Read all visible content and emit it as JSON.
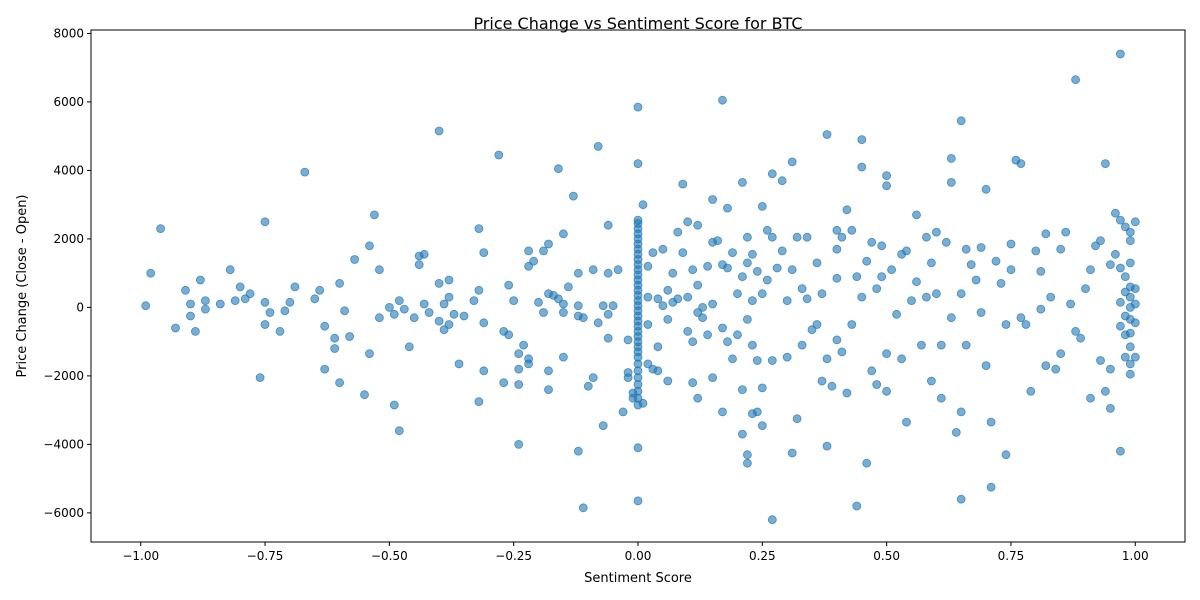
{
  "chart_data": {
    "type": "scatter",
    "title": "Price Change vs Sentiment Score for BTC",
    "xlabel": "Sentiment Score",
    "ylabel": "Price Change (Close - Open)",
    "xlim": [
      -1.1,
      1.1
    ],
    "ylim": [
      -6850,
      8100
    ],
    "xticks": [
      -1.0,
      -0.75,
      -0.5,
      -0.25,
      0.0,
      0.25,
      0.5,
      0.75,
      1.0
    ],
    "xtick_labels": [
      "−1.00",
      "−0.75",
      "−0.50",
      "−0.25",
      "0.00",
      "0.25",
      "0.50",
      "0.75",
      "1.00"
    ],
    "yticks": [
      -6000,
      -4000,
      -2000,
      0,
      2000,
      4000,
      6000,
      8000
    ],
    "ytick_labels": [
      "−6000",
      "−4000",
      "−2000",
      "0",
      "2000",
      "4000",
      "6000",
      "8000"
    ],
    "grid": false,
    "marker_color": "#1f77b4",
    "marker_alpha": 0.6,
    "points": [
      [
        -0.99,
        50
      ],
      [
        -0.98,
        1000
      ],
      [
        -0.96,
        2300
      ],
      [
        -0.93,
        -600
      ],
      [
        -0.91,
        500
      ],
      [
        -0.9,
        100
      ],
      [
        -0.9,
        -250
      ],
      [
        -0.89,
        -700
      ],
      [
        -0.88,
        800
      ],
      [
        -0.87,
        200
      ],
      [
        -0.87,
        -50
      ],
      [
        -0.84,
        100
      ],
      [
        -0.82,
        1100
      ],
      [
        -0.81,
        200
      ],
      [
        -0.8,
        600
      ],
      [
        -0.79,
        250
      ],
      [
        -0.78,
        400
      ],
      [
        -0.76,
        -2050
      ],
      [
        -0.75,
        2500
      ],
      [
        -0.75,
        150
      ],
      [
        -0.75,
        -500
      ],
      [
        -0.74,
        -150
      ],
      [
        -0.72,
        -700
      ],
      [
        -0.71,
        -100
      ],
      [
        -0.7,
        150
      ],
      [
        -0.69,
        600
      ],
      [
        -0.67,
        3950
      ],
      [
        -0.65,
        250
      ],
      [
        -0.64,
        500
      ],
      [
        -0.63,
        -550
      ],
      [
        -0.63,
        -1800
      ],
      [
        -0.61,
        -1200
      ],
      [
        -0.61,
        -900
      ],
      [
        -0.6,
        700
      ],
      [
        -0.6,
        -2200
      ],
      [
        -0.59,
        -100
      ],
      [
        -0.58,
        -850
      ],
      [
        -0.57,
        1400
      ],
      [
        -0.55,
        -2550
      ],
      [
        -0.54,
        1800
      ],
      [
        -0.54,
        -1350
      ],
      [
        -0.53,
        2700
      ],
      [
        -0.52,
        1100
      ],
      [
        -0.52,
        -300
      ],
      [
        -0.5,
        0
      ],
      [
        -0.49,
        -200
      ],
      [
        -0.49,
        -2850
      ],
      [
        -0.48,
        200
      ],
      [
        -0.48,
        -3600
      ],
      [
        -0.47,
        -50
      ],
      [
        -0.46,
        -1150
      ],
      [
        -0.45,
        -300
      ],
      [
        -0.44,
        1250
      ],
      [
        -0.44,
        1500
      ],
      [
        -0.43,
        1550
      ],
      [
        -0.43,
        100
      ],
      [
        -0.42,
        -150
      ],
      [
        -0.4,
        5150
      ],
      [
        -0.4,
        700
      ],
      [
        -0.4,
        -400
      ],
      [
        -0.39,
        100
      ],
      [
        -0.39,
        -650
      ],
      [
        -0.38,
        800
      ],
      [
        -0.38,
        300
      ],
      [
        -0.38,
        -500
      ],
      [
        -0.37,
        -200
      ],
      [
        -0.36,
        -1650
      ],
      [
        -0.35,
        -250
      ],
      [
        -0.33,
        200
      ],
      [
        -0.32,
        500
      ],
      [
        -0.32,
        2300
      ],
      [
        -0.32,
        -2750
      ],
      [
        -0.31,
        1600
      ],
      [
        -0.31,
        -1850
      ],
      [
        -0.31,
        -450
      ],
      [
        -0.28,
        4450
      ],
      [
        -0.27,
        -2200
      ],
      [
        -0.27,
        -700
      ],
      [
        -0.26,
        650
      ],
      [
        -0.26,
        -800
      ],
      [
        -0.25,
        200
      ],
      [
        -0.24,
        -1350
      ],
      [
        -0.24,
        -1800
      ],
      [
        -0.24,
        -2250
      ],
      [
        -0.24,
        -4000
      ],
      [
        -0.23,
        -1100
      ],
      [
        -0.22,
        1650
      ],
      [
        -0.22,
        1200
      ],
      [
        -0.22,
        -1500
      ],
      [
        -0.22,
        -1650
      ],
      [
        -0.21,
        1350
      ],
      [
        -0.2,
        150
      ],
      [
        -0.19,
        -150
      ],
      [
        -0.19,
        1650
      ],
      [
        -0.18,
        1850
      ],
      [
        -0.18,
        400
      ],
      [
        -0.18,
        -1850
      ],
      [
        -0.18,
        -2400
      ],
      [
        -0.17,
        350
      ],
      [
        -0.16,
        4050
      ],
      [
        -0.16,
        250
      ],
      [
        -0.15,
        2150
      ],
      [
        -0.15,
        100
      ],
      [
        -0.15,
        -150
      ],
      [
        -0.15,
        -1450
      ],
      [
        -0.14,
        600
      ],
      [
        -0.13,
        3250
      ],
      [
        -0.12,
        1000
      ],
      [
        -0.12,
        50
      ],
      [
        -0.12,
        -250
      ],
      [
        -0.12,
        -4200
      ],
      [
        -0.11,
        -5850
      ],
      [
        -0.11,
        -300
      ],
      [
        -0.1,
        -2300
      ],
      [
        -0.09,
        1100
      ],
      [
        -0.09,
        -2050
      ],
      [
        -0.08,
        -450
      ],
      [
        -0.08,
        4700
      ],
      [
        -0.07,
        50
      ],
      [
        -0.07,
        -3450
      ],
      [
        -0.06,
        2400
      ],
      [
        -0.06,
        1000
      ],
      [
        -0.06,
        -200
      ],
      [
        -0.06,
        -900
      ],
      [
        -0.05,
        50
      ],
      [
        -0.04,
        1100
      ],
      [
        -0.03,
        -3050
      ],
      [
        -0.02,
        -2050
      ],
      [
        -0.02,
        -1900
      ],
      [
        -0.02,
        -950
      ],
      [
        -0.01,
        -2650
      ],
      [
        -0.01,
        -2500
      ],
      [
        0.0,
        5850
      ],
      [
        0.0,
        4200
      ],
      [
        0.0,
        2550
      ],
      [
        0.0,
        2450
      ],
      [
        0.0,
        2300
      ],
      [
        0.0,
        2150
      ],
      [
        0.0,
        2000
      ],
      [
        0.0,
        1850
      ],
      [
        0.0,
        1700
      ],
      [
        0.0,
        1550
      ],
      [
        0.0,
        1400
      ],
      [
        0.0,
        1250
      ],
      [
        0.0,
        1100
      ],
      [
        0.0,
        950
      ],
      [
        0.0,
        800
      ],
      [
        0.0,
        650
      ],
      [
        0.0,
        500
      ],
      [
        0.0,
        350
      ],
      [
        0.0,
        200
      ],
      [
        0.0,
        50
      ],
      [
        0.0,
        -100
      ],
      [
        0.0,
        -250
      ],
      [
        0.0,
        -400
      ],
      [
        0.0,
        -550
      ],
      [
        0.0,
        -700
      ],
      [
        0.0,
        -850
      ],
      [
        0.0,
        -1000
      ],
      [
        0.0,
        -1150
      ],
      [
        0.0,
        -1300
      ],
      [
        0.0,
        -1450
      ],
      [
        0.0,
        -1650
      ],
      [
        0.0,
        -1850
      ],
      [
        0.0,
        -2050
      ],
      [
        0.0,
        -2250
      ],
      [
        0.0,
        -2450
      ],
      [
        0.0,
        -2650
      ],
      [
        0.0,
        -2850
      ],
      [
        0.0,
        -4100
      ],
      [
        0.0,
        -5650
      ],
      [
        0.01,
        3000
      ],
      [
        0.01,
        -2800
      ],
      [
        0.02,
        -1650
      ],
      [
        0.02,
        1200
      ],
      [
        0.02,
        300
      ],
      [
        0.02,
        -500
      ],
      [
        0.03,
        1600
      ],
      [
        0.03,
        -1800
      ],
      [
        0.04,
        250
      ],
      [
        0.04,
        -1850
      ],
      [
        0.04,
        -1150
      ],
      [
        0.05,
        1700
      ],
      [
        0.05,
        50
      ],
      [
        0.06,
        500
      ],
      [
        0.06,
        -350
      ],
      [
        0.06,
        -2150
      ],
      [
        0.07,
        1000
      ],
      [
        0.07,
        150
      ],
      [
        0.08,
        2200
      ],
      [
        0.08,
        250
      ],
      [
        0.09,
        3600
      ],
      [
        0.09,
        1600
      ],
      [
        0.1,
        2500
      ],
      [
        0.1,
        300
      ],
      [
        0.1,
        -700
      ],
      [
        0.11,
        -1000
      ],
      [
        0.11,
        1100
      ],
      [
        0.11,
        -2200
      ],
      [
        0.12,
        2400
      ],
      [
        0.12,
        -2650
      ],
      [
        0.12,
        650
      ],
      [
        0.12,
        -150
      ],
      [
        0.13,
        0
      ],
      [
        0.13,
        -300
      ],
      [
        0.14,
        1200
      ],
      [
        0.14,
        -800
      ],
      [
        0.15,
        3150
      ],
      [
        0.15,
        1900
      ],
      [
        0.15,
        100
      ],
      [
        0.15,
        -2050
      ],
      [
        0.16,
        1950
      ],
      [
        0.17,
        6050
      ],
      [
        0.17,
        -3050
      ],
      [
        0.17,
        1250
      ],
      [
        0.17,
        -600
      ],
      [
        0.18,
        2900
      ],
      [
        0.18,
        1150
      ],
      [
        0.18,
        -1000
      ],
      [
        0.19,
        1600
      ],
      [
        0.19,
        -1500
      ],
      [
        0.2,
        400
      ],
      [
        0.2,
        -800
      ],
      [
        0.21,
        3650
      ],
      [
        0.21,
        900
      ],
      [
        0.21,
        -2400
      ],
      [
        0.21,
        -3700
      ],
      [
        0.22,
        2050
      ],
      [
        0.22,
        1300
      ],
      [
        0.22,
        -350
      ],
      [
        0.22,
        -4300
      ],
      [
        0.22,
        -4550
      ],
      [
        0.23,
        1550
      ],
      [
        0.23,
        200
      ],
      [
        0.23,
        -1100
      ],
      [
        0.23,
        -3100
      ],
      [
        0.24,
        1050
      ],
      [
        0.24,
        -1550
      ],
      [
        0.24,
        -3050
      ],
      [
        0.25,
        2950
      ],
      [
        0.25,
        400
      ],
      [
        0.25,
        -2350
      ],
      [
        0.25,
        -3450
      ],
      [
        0.26,
        2250
      ],
      [
        0.26,
        800
      ],
      [
        0.27,
        3900
      ],
      [
        0.27,
        2050
      ],
      [
        0.27,
        -1550
      ],
      [
        0.27,
        -6200
      ],
      [
        0.28,
        1150
      ],
      [
        0.29,
        3700
      ],
      [
        0.29,
        1650
      ],
      [
        0.3,
        200
      ],
      [
        0.3,
        -1450
      ],
      [
        0.31,
        4250
      ],
      [
        0.31,
        1100
      ],
      [
        0.31,
        -4250
      ],
      [
        0.32,
        2050
      ],
      [
        0.32,
        -3250
      ],
      [
        0.33,
        550
      ],
      [
        0.33,
        -1100
      ],
      [
        0.34,
        2050
      ],
      [
        0.34,
        250
      ],
      [
        0.35,
        -650
      ],
      [
        0.36,
        1300
      ],
      [
        0.36,
        -500
      ],
      [
        0.37,
        400
      ],
      [
        0.37,
        -2150
      ],
      [
        0.38,
        5050
      ],
      [
        0.38,
        -1500
      ],
      [
        0.38,
        -4050
      ],
      [
        0.39,
        -2300
      ],
      [
        0.4,
        1700
      ],
      [
        0.4,
        2250
      ],
      [
        0.4,
        850
      ],
      [
        0.4,
        -950
      ],
      [
        0.41,
        2050
      ],
      [
        0.41,
        -1300
      ],
      [
        0.42,
        2850
      ],
      [
        0.42,
        -2500
      ],
      [
        0.43,
        2250
      ],
      [
        0.43,
        -500
      ],
      [
        0.44,
        900
      ],
      [
        0.44,
        -5800
      ],
      [
        0.45,
        4900
      ],
      [
        0.45,
        4100
      ],
      [
        0.45,
        300
      ],
      [
        0.46,
        1350
      ],
      [
        0.46,
        -4550
      ],
      [
        0.47,
        1900
      ],
      [
        0.47,
        -1850
      ],
      [
        0.48,
        550
      ],
      [
        0.48,
        -2250
      ],
      [
        0.49,
        1800
      ],
      [
        0.49,
        900
      ],
      [
        0.5,
        3550
      ],
      [
        0.5,
        3850
      ],
      [
        0.5,
        -1350
      ],
      [
        0.5,
        -2450
      ],
      [
        0.51,
        1100
      ],
      [
        0.52,
        -200
      ],
      [
        0.53,
        1550
      ],
      [
        0.53,
        -1500
      ],
      [
        0.54,
        1650
      ],
      [
        0.54,
        -3350
      ],
      [
        0.55,
        200
      ],
      [
        0.56,
        2700
      ],
      [
        0.56,
        750
      ],
      [
        0.57,
        -1100
      ],
      [
        0.58,
        2050
      ],
      [
        0.58,
        300
      ],
      [
        0.59,
        1300
      ],
      [
        0.59,
        -2150
      ],
      [
        0.6,
        2200
      ],
      [
        0.6,
        400
      ],
      [
        0.61,
        -1100
      ],
      [
        0.61,
        -2650
      ],
      [
        0.62,
        1900
      ],
      [
        0.63,
        4350
      ],
      [
        0.63,
        3650
      ],
      [
        0.63,
        -300
      ],
      [
        0.64,
        -3650
      ],
      [
        0.65,
        5450
      ],
      [
        0.65,
        400
      ],
      [
        0.65,
        -5600
      ],
      [
        0.65,
        -3050
      ],
      [
        0.66,
        1700
      ],
      [
        0.66,
        -1100
      ],
      [
        0.67,
        1250
      ],
      [
        0.68,
        800
      ],
      [
        0.69,
        1750
      ],
      [
        0.69,
        -150
      ],
      [
        0.7,
        3450
      ],
      [
        0.7,
        -1700
      ],
      [
        0.71,
        -3350
      ],
      [
        0.71,
        -5250
      ],
      [
        0.72,
        1350
      ],
      [
        0.73,
        700
      ],
      [
        0.74,
        -500
      ],
      [
        0.74,
        -4300
      ],
      [
        0.75,
        1850
      ],
      [
        0.75,
        1100
      ],
      [
        0.76,
        4300
      ],
      [
        0.77,
        4200
      ],
      [
        0.77,
        -300
      ],
      [
        0.78,
        -500
      ],
      [
        0.79,
        -2450
      ],
      [
        0.8,
        1650
      ],
      [
        0.81,
        1050
      ],
      [
        0.81,
        -50
      ],
      [
        0.82,
        2150
      ],
      [
        0.82,
        -1700
      ],
      [
        0.83,
        300
      ],
      [
        0.84,
        -1800
      ],
      [
        0.85,
        1700
      ],
      [
        0.85,
        -1350
      ],
      [
        0.86,
        2200
      ],
      [
        0.87,
        100
      ],
      [
        0.88,
        6650
      ],
      [
        0.88,
        -700
      ],
      [
        0.89,
        -900
      ],
      [
        0.9,
        550
      ],
      [
        0.91,
        1100
      ],
      [
        0.91,
        -2650
      ],
      [
        0.92,
        1800
      ],
      [
        0.93,
        1950
      ],
      [
        0.93,
        -1550
      ],
      [
        0.94,
        4200
      ],
      [
        0.94,
        -2450
      ],
      [
        0.95,
        1250
      ],
      [
        0.95,
        -1800
      ],
      [
        0.95,
        -2950
      ],
      [
        0.96,
        2750
      ],
      [
        0.96,
        1550
      ],
      [
        0.97,
        7400
      ],
      [
        0.97,
        2550
      ],
      [
        0.97,
        -4200
      ],
      [
        0.97,
        1150
      ],
      [
        0.97,
        150
      ],
      [
        0.97,
        -550
      ],
      [
        0.98,
        2350
      ],
      [
        0.98,
        900
      ],
      [
        0.98,
        450
      ],
      [
        0.98,
        -250
      ],
      [
        0.98,
        -800
      ],
      [
        0.98,
        -1450
      ],
      [
        0.99,
        2200
      ],
      [
        0.99,
        1950
      ],
      [
        0.99,
        1300
      ],
      [
        0.99,
        600
      ],
      [
        0.99,
        300
      ],
      [
        0.99,
        0
      ],
      [
        0.99,
        -350
      ],
      [
        0.99,
        -750
      ],
      [
        0.99,
        -1150
      ],
      [
        0.99,
        -1650
      ],
      [
        0.99,
        -1950
      ],
      [
        1.0,
        2500
      ],
      [
        1.0,
        550
      ],
      [
        1.0,
        100
      ],
      [
        1.0,
        -450
      ],
      [
        1.0,
        -1450
      ]
    ]
  }
}
